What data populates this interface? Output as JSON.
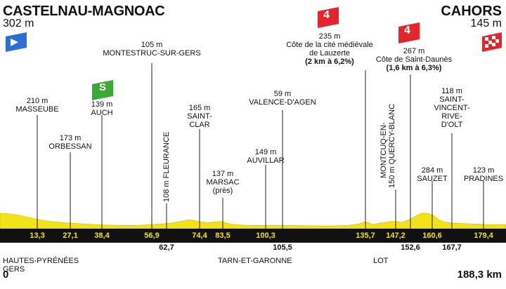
{
  "start": {
    "name": "CASTELNAU-MAGNOAC",
    "altitude": "302 m"
  },
  "finish": {
    "name": "CAHORS",
    "altitude": "145 m"
  },
  "icons": {
    "start_flag": "start-flag-icon",
    "finish_flag": "finish-flag-icon",
    "climb_badge": "climb-category-icon",
    "sprint_badge": "sprint-icon"
  },
  "colors": {
    "profile_fill": "#f2e21a",
    "km_band": "#111111",
    "start_flag": "#2a6fd1",
    "finish_flag": "#e3262b",
    "climb": "#e3262b",
    "sprint": "#3aa935"
  },
  "waypoints": [
    {
      "alt": "210 m",
      "name": "MASSEUBE"
    },
    {
      "alt": "173 m",
      "name": "ORBESSAN"
    },
    {
      "alt": "139 m",
      "name": "AUCH"
    },
    {
      "alt": "105 m",
      "name": "MONTESTRUC-SUR-GERS"
    },
    {
      "alt": "108 m",
      "name": "FLEURANCE"
    },
    {
      "alt": "165 m",
      "name": "SAINT-",
      "name2": "CLAR"
    },
    {
      "alt": "137 m",
      "name": "MARSAC",
      "name2": "(près)"
    },
    {
      "alt": "149 m",
      "name": "AUVILLAR"
    },
    {
      "alt": "59 m",
      "name": "VALENCE-D'AGEN"
    },
    {
      "alt": "235 m",
      "name": "Côte de la cité médiévale",
      "name2": "de Lauzerte",
      "detail": "(2 km à 6,2%)"
    },
    {
      "alt": "150 m",
      "name": "MONTCUQ-EN-",
      "name2": "QUERCY-BLANC"
    },
    {
      "alt": "267 m",
      "name": "Côte de Saint-Daunès",
      "detail": "(1,6 km à 6,3%)"
    },
    {
      "alt": "284 m",
      "name": "SAUZET"
    },
    {
      "alt": "118 m",
      "name": "SAINT-",
      "name2": "VINCENT-",
      "name3": "RIVE-",
      "name4": "D'OLT"
    },
    {
      "alt": "123 m",
      "name": "PRADINES"
    }
  ],
  "climbs": [
    {
      "category": "4"
    },
    {
      "category": "4"
    }
  ],
  "sprint": {
    "label": "S"
  },
  "km_marks": [
    "13,3",
    "27,1",
    "38,4",
    "56,9",
    "62,7",
    "74,4",
    "83,5",
    "100,3",
    "105,5",
    "135,7",
    "147,2",
    "152,6",
    "160,6",
    "167,7",
    "179,4"
  ],
  "regions": {
    "hp_line1": "HAUTES-PYRÉNÉES",
    "hp_line2": "GERS",
    "tg": "TARN-ET-GARONNE",
    "lot": "LOT"
  },
  "distance": {
    "start": "0",
    "total": "188,3 km"
  }
}
